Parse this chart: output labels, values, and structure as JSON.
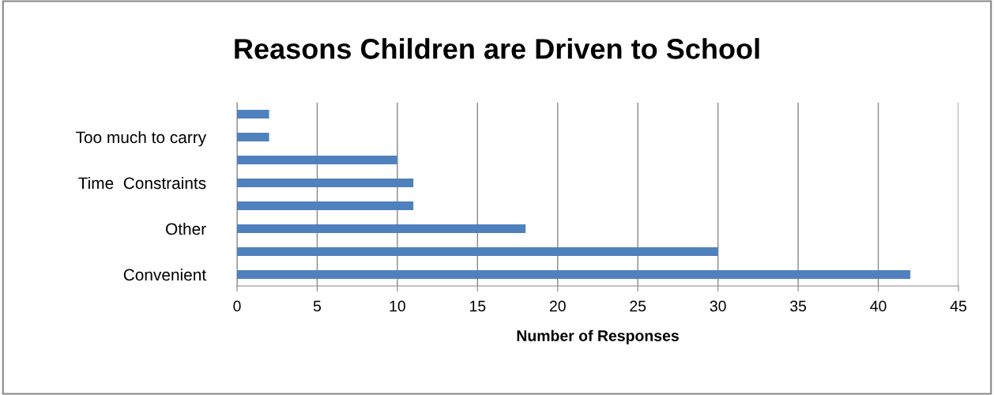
{
  "chart_data": {
    "type": "bar",
    "orientation": "horizontal",
    "title": "Reasons Children are Driven to School",
    "xlabel": "Number of Responses",
    "categories": [
      null,
      "Too much to carry",
      null,
      "Time  Constraints",
      null,
      "Other",
      null,
      "Convenient"
    ],
    "values": [
      2,
      2,
      10,
      11,
      11,
      18,
      30,
      42
    ],
    "color": "#4f81bd",
    "xlim": [
      0,
      45
    ],
    "xticks": [
      0,
      5,
      10,
      15,
      20,
      25,
      30,
      35,
      40,
      45
    ],
    "grid": "x",
    "legend": false
  }
}
